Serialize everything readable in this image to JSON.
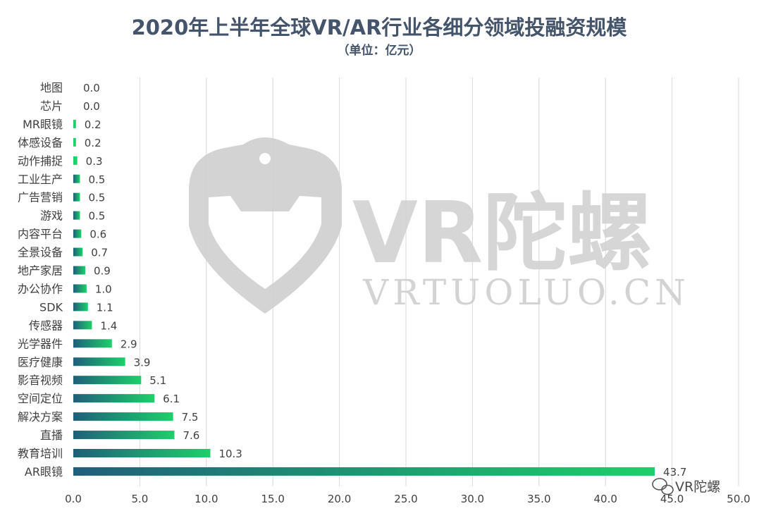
{
  "chart_data": {
    "type": "bar",
    "orientation": "horizontal",
    "title": "2020年上半年全球VR/AR行业各细分领域投融资规模",
    "subtitle": "（单位：亿元）",
    "categories": [
      "地图",
      "芯片",
      "MR眼镜",
      "体感设备",
      "动作捕捉",
      "工业生产",
      "广告营销",
      "游戏",
      "内容平台",
      "全景设备",
      "地产家居",
      "办公协作",
      "SDK",
      "传感器",
      "光学器件",
      "医疗健康",
      "影音视频",
      "空间定位",
      "解决方案",
      "直播",
      "教育培训",
      "AR眼镜"
    ],
    "values": [
      0.0,
      0.0,
      0.2,
      0.2,
      0.3,
      0.5,
      0.5,
      0.5,
      0.6,
      0.7,
      0.9,
      1.0,
      1.1,
      1.4,
      2.9,
      3.9,
      5.1,
      6.1,
      7.5,
      7.6,
      10.3,
      43.7
    ],
    "value_labels": [
      "0.0",
      "0.0",
      "0.2",
      "0.2",
      "0.3",
      "0.5",
      "0.5",
      "0.5",
      "0.6",
      "0.7",
      "0.9",
      "1.0",
      "1.1",
      "1.4",
      "2.9",
      "3.9",
      "5.1",
      "6.1",
      "7.5",
      "7.6",
      "10.3",
      "43.7"
    ],
    "xlim": [
      0,
      50
    ],
    "ticks": [
      0,
      5,
      10,
      15,
      20,
      25,
      30,
      35,
      40,
      45,
      50
    ],
    "tick_labels": [
      "0.0",
      "5.0",
      "10.0",
      "15.0",
      "20.0",
      "25.0",
      "30.0",
      "35.0",
      "40.0",
      "45.0",
      "50.0"
    ],
    "xlabel": "",
    "ylabel": "",
    "grid": "vertical",
    "legend": "none",
    "colors": {
      "bar_start": "#1f5f7a",
      "bar_end": "#1ecf6a",
      "grid": "#d9d9d9",
      "text": "#404040",
      "title": "#44546a"
    }
  },
  "watermark": {
    "brand_cn": "VR陀螺",
    "url": "VRTUOLUO.CN"
  },
  "corner_badge": {
    "label": "VR陀螺",
    "icon": "wechat-icon"
  }
}
